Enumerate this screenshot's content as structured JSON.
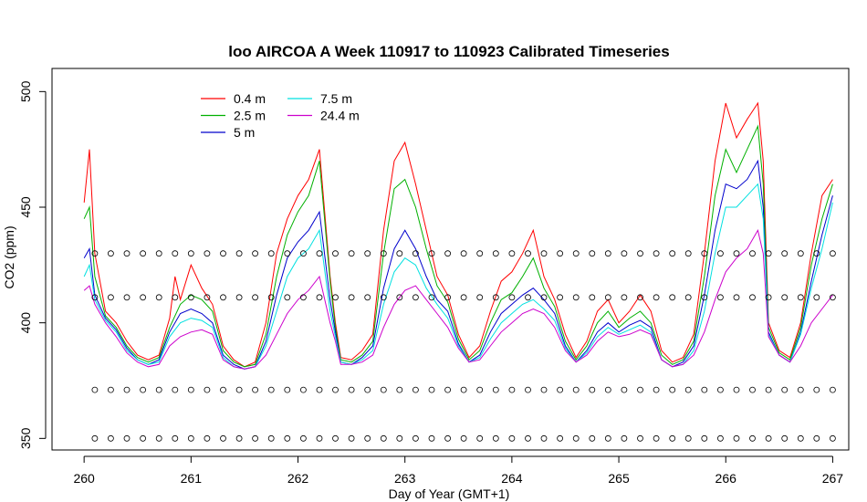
{
  "chart_data": {
    "type": "line",
    "title": "loo AIRCOA A  Week 110917 to 110923  Calibrated Timeseries",
    "xlabel": "Day of Year (GMT+1)",
    "ylabel": "CO2 (ppm)",
    "xlim": [
      259.7,
      267.15
    ],
    "ylim": [
      345,
      510
    ],
    "xticks": [
      260,
      261,
      262,
      263,
      264,
      265,
      266,
      267
    ],
    "yticks": [
      350,
      400,
      450,
      500
    ],
    "grid": false,
    "legend_position": "top-left",
    "series": [
      {
        "name": "0.4 m",
        "color": "#ff0000",
        "x": [
          260.0,
          260.05,
          260.1,
          260.2,
          260.3,
          260.4,
          260.5,
          260.6,
          260.7,
          260.8,
          260.85,
          260.9,
          261.0,
          261.1,
          261.2,
          261.3,
          261.4,
          261.5,
          261.6,
          261.7,
          261.8,
          261.9,
          262.0,
          262.1,
          262.2,
          262.3,
          262.35,
          262.4,
          262.5,
          262.6,
          262.7,
          262.8,
          262.9,
          263.0,
          263.1,
          263.2,
          263.3,
          263.4,
          263.5,
          263.6,
          263.7,
          263.8,
          263.9,
          264.0,
          264.1,
          264.2,
          264.3,
          264.4,
          264.5,
          264.6,
          264.7,
          264.8,
          264.9,
          265.0,
          265.1,
          265.2,
          265.3,
          265.4,
          265.5,
          265.6,
          265.7,
          265.8,
          265.9,
          266.0,
          266.1,
          266.2,
          266.3,
          266.35,
          266.4,
          266.5,
          266.6,
          266.7,
          266.8,
          266.9,
          267.0
        ],
        "y": [
          452,
          475,
          430,
          405,
          400,
          392,
          386,
          384,
          386,
          402,
          420,
          410,
          425,
          415,
          408,
          390,
          384,
          381,
          383,
          400,
          430,
          445,
          455,
          462,
          475,
          420,
          400,
          385,
          384,
          388,
          395,
          440,
          470,
          478,
          460,
          440,
          420,
          412,
          395,
          385,
          390,
          405,
          418,
          422,
          430,
          440,
          420,
          410,
          395,
          385,
          392,
          405,
          410,
          400,
          405,
          412,
          405,
          388,
          383,
          385,
          395,
          430,
          470,
          495,
          480,
          488,
          495,
          470,
          400,
          388,
          385,
          400,
          430,
          455,
          462
        ]
      },
      {
        "name": "2.5 m",
        "color": "#00b000",
        "x": [
          260.0,
          260.05,
          260.1,
          260.2,
          260.3,
          260.4,
          260.5,
          260.6,
          260.7,
          260.8,
          260.9,
          261.0,
          261.1,
          261.2,
          261.3,
          261.4,
          261.5,
          261.6,
          261.7,
          261.8,
          261.9,
          262.0,
          262.1,
          262.2,
          262.3,
          262.35,
          262.4,
          262.5,
          262.6,
          262.7,
          262.8,
          262.9,
          263.0,
          263.1,
          263.2,
          263.3,
          263.4,
          263.5,
          263.6,
          263.7,
          263.8,
          263.9,
          264.0,
          264.1,
          264.2,
          264.3,
          264.4,
          264.5,
          264.6,
          264.7,
          264.8,
          264.9,
          265.0,
          265.1,
          265.2,
          265.3,
          265.4,
          265.5,
          265.6,
          265.7,
          265.8,
          265.9,
          266.0,
          266.1,
          266.2,
          266.3,
          266.35,
          266.4,
          266.5,
          266.6,
          266.7,
          266.8,
          266.9,
          267.0
        ],
        "y": [
          445,
          450,
          420,
          403,
          398,
          390,
          385,
          383,
          385,
          398,
          408,
          412,
          410,
          405,
          388,
          383,
          381,
          382,
          395,
          420,
          438,
          448,
          455,
          470,
          418,
          398,
          384,
          383,
          386,
          392,
          430,
          458,
          462,
          450,
          432,
          416,
          409,
          393,
          384,
          388,
          400,
          410,
          413,
          420,
          428,
          415,
          407,
          392,
          384,
          390,
          400,
          405,
          398,
          402,
          405,
          400,
          386,
          382,
          384,
          392,
          420,
          455,
          475,
          465,
          475,
          485,
          460,
          398,
          387,
          384,
          398,
          425,
          445,
          460
        ]
      },
      {
        "name": "5 m",
        "color": "#0000cc",
        "x": [
          260.0,
          260.05,
          260.1,
          260.2,
          260.3,
          260.4,
          260.5,
          260.6,
          260.7,
          260.8,
          260.9,
          261.0,
          261.1,
          261.2,
          261.3,
          261.4,
          261.5,
          261.6,
          261.7,
          261.8,
          261.9,
          262.0,
          262.1,
          262.2,
          262.3,
          262.35,
          262.4,
          262.5,
          262.6,
          262.7,
          262.8,
          262.9,
          263.0,
          263.1,
          263.2,
          263.3,
          263.4,
          263.5,
          263.6,
          263.7,
          263.8,
          263.9,
          264.0,
          264.1,
          264.2,
          264.3,
          264.4,
          264.5,
          264.6,
          264.7,
          264.8,
          264.9,
          265.0,
          265.1,
          265.2,
          265.3,
          265.4,
          265.5,
          265.6,
          265.7,
          265.8,
          265.9,
          266.0,
          266.1,
          266.2,
          266.3,
          266.35,
          266.4,
          266.5,
          266.6,
          266.7,
          266.8,
          266.9,
          267.0
        ],
        "y": [
          428,
          432,
          412,
          402,
          397,
          389,
          384,
          382,
          384,
          396,
          404,
          406,
          404,
          400,
          386,
          382,
          380,
          381,
          392,
          412,
          428,
          435,
          440,
          448,
          410,
          396,
          383,
          382,
          385,
          390,
          415,
          432,
          440,
          432,
          420,
          410,
          405,
          391,
          383,
          386,
          396,
          404,
          408,
          412,
          415,
          410,
          404,
          390,
          383,
          388,
          396,
          400,
          396,
          399,
          401,
          398,
          384,
          381,
          383,
          390,
          412,
          440,
          460,
          458,
          462,
          470,
          450,
          396,
          386,
          383,
          396,
          418,
          438,
          455
        ]
      },
      {
        "name": "7.5 m",
        "color": "#00e0e0",
        "x": [
          260.0,
          260.05,
          260.1,
          260.2,
          260.3,
          260.4,
          260.5,
          260.6,
          260.7,
          260.8,
          260.9,
          261.0,
          261.1,
          261.2,
          261.3,
          261.4,
          261.5,
          261.6,
          261.7,
          261.8,
          261.9,
          262.0,
          262.1,
          262.2,
          262.3,
          262.35,
          262.4,
          262.5,
          262.6,
          262.7,
          262.8,
          262.9,
          263.0,
          263.1,
          263.2,
          263.3,
          263.4,
          263.5,
          263.6,
          263.7,
          263.8,
          263.9,
          264.0,
          264.1,
          264.2,
          264.3,
          264.4,
          264.5,
          264.6,
          264.7,
          264.8,
          264.9,
          265.0,
          265.1,
          265.2,
          265.3,
          265.4,
          265.5,
          265.6,
          265.7,
          265.8,
          265.9,
          266.0,
          266.1,
          266.2,
          266.3,
          266.35,
          266.4,
          266.5,
          266.6,
          266.7,
          266.8,
          266.9,
          267.0
        ],
        "y": [
          420,
          425,
          410,
          401,
          396,
          388,
          384,
          382,
          383,
          394,
          400,
          402,
          401,
          398,
          385,
          381,
          380,
          381,
          390,
          405,
          420,
          428,
          432,
          440,
          405,
          394,
          383,
          382,
          384,
          388,
          408,
          422,
          428,
          425,
          415,
          408,
          402,
          390,
          383,
          385,
          393,
          400,
          404,
          408,
          410,
          406,
          401,
          389,
          383,
          387,
          394,
          398,
          395,
          397,
          399,
          396,
          384,
          381,
          382,
          388,
          405,
          430,
          450,
          450,
          455,
          460,
          445,
          395,
          386,
          383,
          395,
          415,
          432,
          452
        ]
      },
      {
        "name": "24.4 m",
        "color": "#cc00cc",
        "x": [
          260.0,
          260.05,
          260.1,
          260.2,
          260.3,
          260.4,
          260.5,
          260.6,
          260.7,
          260.8,
          260.9,
          261.0,
          261.1,
          261.2,
          261.3,
          261.4,
          261.5,
          261.6,
          261.7,
          261.8,
          261.9,
          262.0,
          262.1,
          262.2,
          262.3,
          262.35,
          262.4,
          262.5,
          262.6,
          262.7,
          262.8,
          262.9,
          263.0,
          263.1,
          263.2,
          263.3,
          263.4,
          263.5,
          263.6,
          263.7,
          263.8,
          263.9,
          264.0,
          264.1,
          264.2,
          264.3,
          264.4,
          264.5,
          264.6,
          264.7,
          264.8,
          264.9,
          265.0,
          265.1,
          265.2,
          265.3,
          265.4,
          265.5,
          265.6,
          265.7,
          265.8,
          265.9,
          266.0,
          266.1,
          266.2,
          266.3,
          266.35,
          266.4,
          266.5,
          266.6,
          266.7,
          266.8,
          266.9,
          267.0
        ],
        "y": [
          414,
          416,
          408,
          400,
          394,
          387,
          383,
          381,
          382,
          390,
          394,
          396,
          397,
          395,
          384,
          381,
          380,
          381,
          386,
          395,
          404,
          410,
          414,
          420,
          400,
          392,
          382,
          382,
          383,
          386,
          398,
          408,
          414,
          416,
          410,
          404,
          398,
          389,
          383,
          384,
          390,
          396,
          400,
          404,
          406,
          404,
          398,
          388,
          383,
          386,
          392,
          396,
          394,
          395,
          397,
          395,
          384,
          381,
          382,
          386,
          396,
          410,
          422,
          428,
          432,
          440,
          430,
          394,
          386,
          383,
          390,
          400,
          406,
          412
        ]
      }
    ],
    "marker_points": {
      "symbol": "open-circle",
      "levels": [
        430,
        411,
        371,
        350
      ],
      "x": [
        260.1,
        260.25,
        260.4,
        260.55,
        260.7,
        260.85,
        261.0,
        261.15,
        261.3,
        261.45,
        261.6,
        261.75,
        261.9,
        262.05,
        262.2,
        262.35,
        262.5,
        262.65,
        262.8,
        262.95,
        263.1,
        263.25,
        263.4,
        263.55,
        263.7,
        263.85,
        264.0,
        264.15,
        264.3,
        264.45,
        264.6,
        264.75,
        264.9,
        265.05,
        265.2,
        265.35,
        265.5,
        265.65,
        265.8,
        265.95,
        266.1,
        266.25,
        266.4,
        266.55,
        266.7,
        266.85,
        267.0
      ]
    }
  }
}
